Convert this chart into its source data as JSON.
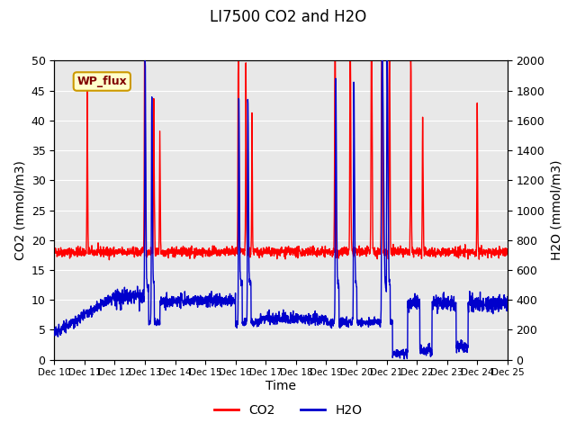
{
  "title": "LI7500 CO2 and H2O",
  "xlabel": "Time",
  "ylabel_left": "CO2 (mmol/m3)",
  "ylabel_right": "H2O (mmol/m3)",
  "xlim": [
    0,
    15
  ],
  "ylim_left": [
    0,
    50
  ],
  "ylim_right": [
    0,
    2000
  ],
  "yticks_left": [
    0,
    5,
    10,
    15,
    20,
    25,
    30,
    35,
    40,
    45,
    50
  ],
  "yticks_right": [
    0,
    200,
    400,
    600,
    800,
    1000,
    1200,
    1400,
    1600,
    1800,
    2000
  ],
  "xtick_labels": [
    "Dec 10",
    "Dec 11",
    "Dec 12",
    "Dec 13",
    "Dec 14",
    "Dec 15",
    "Dec 16",
    "Dec 17",
    "Dec 18",
    "Dec 19",
    "Dec 20",
    "Dec 21",
    "Dec 22",
    "Dec 23",
    "Dec 24",
    "Dec 25"
  ],
  "site_label": "WP_flux",
  "site_label_bg": "#ffffcc",
  "site_label_border": "#cc9900",
  "site_label_color": "#800000",
  "co2_color": "#ff0000",
  "h2o_color": "#0000cc",
  "bg_color": "#e8e8e8",
  "legend_co2": "CO2",
  "legend_h2o": "H2O",
  "co2_linewidth": 1.0,
  "h2o_linewidth": 1.0
}
